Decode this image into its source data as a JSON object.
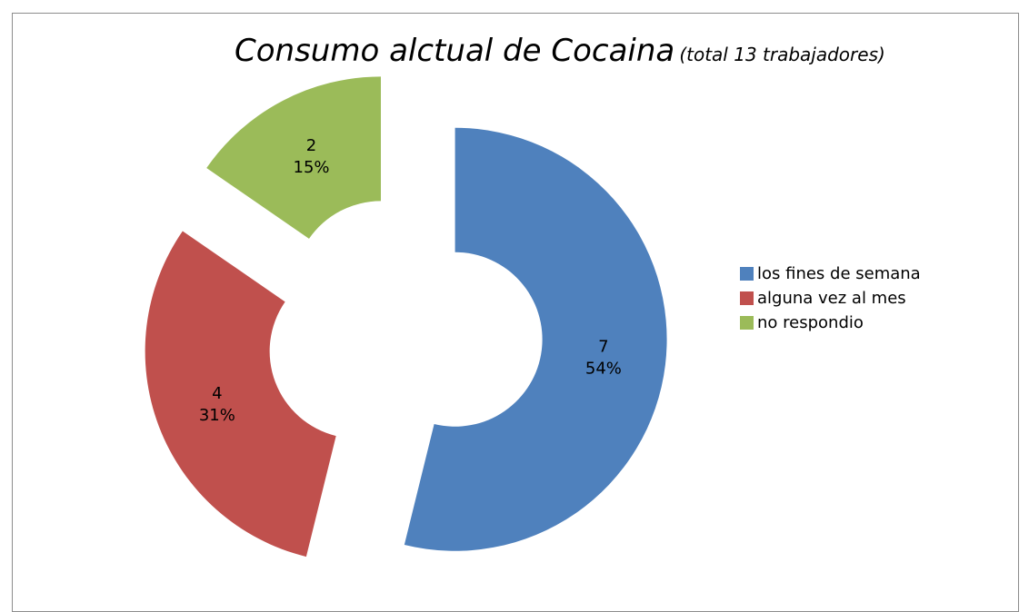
{
  "chart_data": {
    "type": "pie",
    "variant": "exploded-doughnut",
    "title": "Consumo alctual de Cocaina",
    "subtitle": "(total 13 trabajadores)",
    "series": [
      {
        "name": "los fines de semana",
        "value": 7,
        "percent_label": "54%",
        "color": "#4f81bd"
      },
      {
        "name": "alguna vez al mes",
        "value": 4,
        "percent_label": "31%",
        "color": "#c0504d"
      },
      {
        "name": "no respondio",
        "value": 2,
        "percent_label": "15%",
        "color": "#9bbb59"
      }
    ],
    "legend": "right"
  }
}
